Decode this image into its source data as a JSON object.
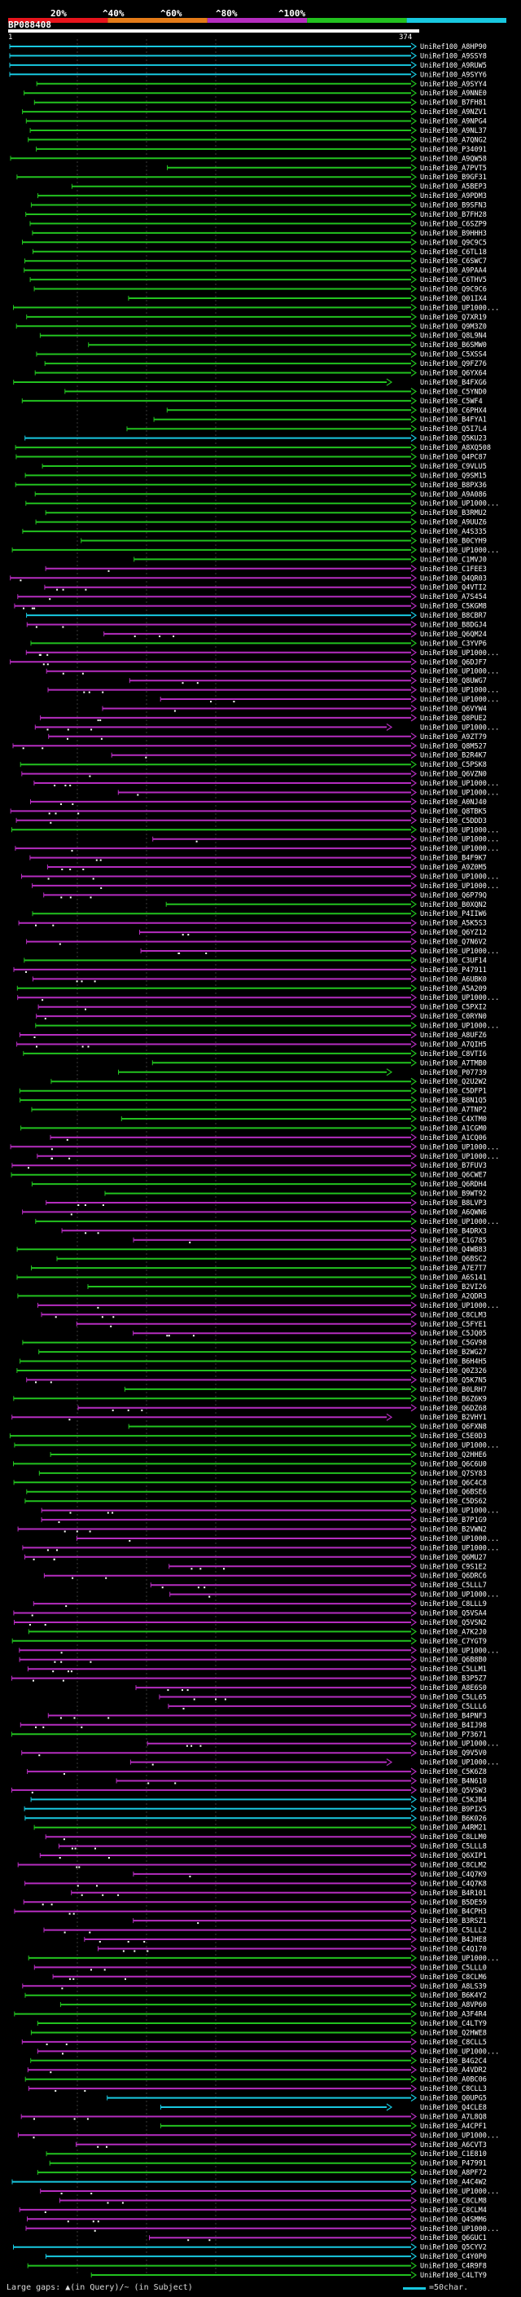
{
  "colors": {
    "red": "#e8141c",
    "orange": "#e57b18",
    "purple": "#b52dbf",
    "green": "#22c21f",
    "cyan": "#18c8e0",
    "ruler": "#ffffff"
  },
  "colorbar": {
    "segments": [
      {
        "label": "20%",
        "color": "red"
      },
      {
        "label": "^40%",
        "color": "orange"
      },
      {
        "label": "^60%",
        "color": "purple"
      },
      {
        "label": "^80%",
        "color": "green"
      },
      {
        "label": "^100%",
        "color": "cyan"
      }
    ]
  },
  "query": {
    "title": "BP088408",
    "start": "1",
    "end": "374"
  },
  "legend": {
    "gaps_text": "Large gaps: ▲(in Query)/~ (in Subject)",
    "scale_text": "=50char."
  },
  "chart_data": {
    "type": "alignment",
    "query_length": 374,
    "hits": [
      {
        "id": "UniRef100_A8HP90",
        "color": "cyan"
      },
      {
        "id": "UniRef100_A9SSY8",
        "color": "cyan"
      },
      {
        "id": "UniRef100_A9RUW5",
        "color": "cyan"
      },
      {
        "id": "UniRef100_A9SYY6",
        "color": "cyan"
      },
      {
        "id": "UniRef100_A9SYY4",
        "color": "green"
      },
      {
        "id": "UniRef100_A9NNE0",
        "color": "green"
      },
      {
        "id": "UniRef100_B7FH81",
        "color": "green"
      },
      {
        "id": "UniRef100_A9NZV1",
        "color": "green"
      },
      {
        "id": "UniRef100_A9NPG4",
        "color": "green"
      },
      {
        "id": "UniRef100_A9NL37",
        "color": "green"
      },
      {
        "id": "UniRef100_A7QNG2",
        "color": "green"
      },
      {
        "id": "UniRef100_P34091",
        "color": "green"
      },
      {
        "id": "UniRef100_A9QW58",
        "color": "green"
      },
      {
        "id": "UniRef100_A7PVT5",
        "color": "green"
      },
      {
        "id": "UniRef100_B9GF31",
        "color": "green"
      },
      {
        "id": "UniRef100_A5BEP3",
        "color": "green"
      },
      {
        "id": "UniRef100_A9PDM3",
        "color": "green"
      },
      {
        "id": "UniRef100_B9SFN3",
        "color": "green"
      },
      {
        "id": "UniRef100_B7FH28",
        "color": "green"
      },
      {
        "id": "UniRef100_C6SZP9",
        "color": "green"
      },
      {
        "id": "UniRef100_B9HHH3",
        "color": "green"
      },
      {
        "id": "UniRef100_Q9C9C5",
        "color": "green"
      },
      {
        "id": "UniRef100_C6TL18",
        "color": "green"
      },
      {
        "id": "UniRef100_C6SWC7",
        "color": "green"
      },
      {
        "id": "UniRef100_A9PAA4",
        "color": "green"
      },
      {
        "id": "UniRef100_C6THV5",
        "color": "green"
      },
      {
        "id": "UniRef100_Q9C9C6",
        "color": "green"
      },
      {
        "id": "UniRef100_Q01IX4",
        "color": "green"
      },
      {
        "id": "UniRef100_UP1000...",
        "color": "green"
      },
      {
        "id": "UniRef100_Q7XR19",
        "color": "green"
      },
      {
        "id": "UniRef100_Q9M3Z0",
        "color": "green"
      },
      {
        "id": "UniRef100_Q8L9N4",
        "color": "green"
      },
      {
        "id": "UniRef100_B6SMW0",
        "color": "green"
      },
      {
        "id": "UniRef100_C5XSS4",
        "color": "green"
      },
      {
        "id": "UniRef100_Q9FZ76",
        "color": "green"
      },
      {
        "id": "UniRef100_Q6YX64",
        "color": "green"
      },
      {
        "id": "UniRef100_B4FXG6",
        "color": "green"
      },
      {
        "id": "UniRef100_C5YND0",
        "color": "green"
      },
      {
        "id": "UniRef100_C5WF4",
        "color": "green"
      },
      {
        "id": "UniRef100_C6PHX4",
        "color": "green"
      },
      {
        "id": "UniRef100_B4FYA1",
        "color": "green"
      },
      {
        "id": "UniRef100_Q5I7L4",
        "color": "green"
      },
      {
        "id": "UniRef100_Q5KU23",
        "color": "cyan"
      },
      {
        "id": "UniRef100_A8XQ508",
        "color": "green"
      },
      {
        "id": "UniRef100_Q4PC87",
        "color": "green"
      },
      {
        "id": "UniRef100_C9VLU5",
        "color": "green"
      },
      {
        "id": "UniRef100_Q9SM15",
        "color": "green"
      },
      {
        "id": "UniRef100_B8PX36",
        "color": "green"
      },
      {
        "id": "UniRef100_A9A086",
        "color": "green"
      },
      {
        "id": "UniRef100_UP1000...",
        "color": "green"
      },
      {
        "id": "UniRef100_B3RMU2",
        "color": "green"
      },
      {
        "id": "UniRef100_A9UUZ6",
        "color": "green"
      },
      {
        "id": "UniRef100_A4S335",
        "color": "green"
      },
      {
        "id": "UniRef100_B0CYH9",
        "color": "green"
      },
      {
        "id": "UniRef100_UP1000...",
        "color": "green"
      },
      {
        "id": "UniRef100_C1MVJ0",
        "color": "green"
      },
      {
        "id": "UniRef100_C1FEE3",
        "color": "purple"
      },
      {
        "id": "UniRef100_Q4QR03",
        "color": "purple"
      },
      {
        "id": "UniRef100_Q4VTI2",
        "color": "purple"
      },
      {
        "id": "UniRef100_A7S454",
        "color": "purple"
      },
      {
        "id": "UniRef100_C5KGM8",
        "color": "purple"
      },
      {
        "id": "UniRef100_B8CBR7",
        "color": "cyan"
      },
      {
        "id": "UniRef100_B8DGJ4",
        "color": "purple"
      },
      {
        "id": "UniRef100_Q6QM24",
        "color": "purple"
      },
      {
        "id": "UniRef100_C3YVP6",
        "color": "green"
      },
      {
        "id": "UniRef100_UP1000...",
        "color": "purple"
      },
      {
        "id": "UniRef100_Q6DJF7",
        "color": "purple"
      },
      {
        "id": "UniRef100_UP1000...",
        "color": "purple"
      },
      {
        "id": "UniRef100_Q8UWG7",
        "color": "purple"
      },
      {
        "id": "UniRef100_UP1000...",
        "color": "purple"
      },
      {
        "id": "UniRef100_UP1000...",
        "color": "purple"
      },
      {
        "id": "UniRef100_Q6VYW4",
        "color": "purple"
      },
      {
        "id": "UniRef100_Q8PUE2",
        "color": "purple"
      },
      {
        "id": "UniRef100_UP1000...",
        "color": "purple"
      },
      {
        "id": "UniRef100_A9ZT79",
        "color": "purple"
      },
      {
        "id": "UniRef100_Q8M527",
        "color": "purple"
      },
      {
        "id": "UniRef100_B2R4K7",
        "color": "purple"
      },
      {
        "id": "UniRef100_C5PSK8",
        "color": "green"
      },
      {
        "id": "UniRef100_Q6VZN0",
        "color": "purple"
      },
      {
        "id": "UniRef100_UP1000...",
        "color": "purple"
      },
      {
        "id": "UniRef100_UP1000...",
        "color": "purple"
      },
      {
        "id": "UniRef100_A0NJ40",
        "color": "purple"
      },
      {
        "id": "UniRef100_Q8TBK5",
        "color": "purple"
      },
      {
        "id": "UniRef100_C5DDD3",
        "color": "purple"
      },
      {
        "id": "UniRef100_UP1000...",
        "color": "green"
      },
      {
        "id": "UniRef100_UP1000...",
        "color": "purple"
      },
      {
        "id": "UniRef100_UP1000...",
        "color": "purple"
      },
      {
        "id": "UniRef100_B4F9K7",
        "color": "purple"
      },
      {
        "id": "UniRef100_A9Z0M5",
        "color": "purple"
      },
      {
        "id": "UniRef100_UP1000...",
        "color": "purple"
      },
      {
        "id": "UniRef100_UP1000...",
        "color": "purple"
      },
      {
        "id": "UniRef100_Q6P79Q",
        "color": "purple"
      },
      {
        "id": "UniRef100_B0XQN2",
        "color": "green"
      },
      {
        "id": "UniRef100_P4IIW6",
        "color": "green"
      },
      {
        "id": "UniRef100_A5K5S3",
        "color": "purple"
      },
      {
        "id": "UniRef100_Q6YZ12",
        "color": "purple"
      },
      {
        "id": "UniRef100_Q7N6V2",
        "color": "purple"
      },
      {
        "id": "UniRef100_UP1000...",
        "color": "purple"
      },
      {
        "id": "UniRef100_C3UF14",
        "color": "green"
      },
      {
        "id": "UniRef100_P47911",
        "color": "purple"
      },
      {
        "id": "UniRef100_A6UBK0",
        "color": "purple"
      },
      {
        "id": "UniRef100_A5A209",
        "color": "green"
      },
      {
        "id": "UniRef100_UP1000...",
        "color": "purple"
      },
      {
        "id": "UniRef100_C5PXI2",
        "color": "purple"
      },
      {
        "id": "UniRef100_C0RYN0",
        "color": "purple"
      },
      {
        "id": "UniRef100_UP1000...",
        "color": "green"
      },
      {
        "id": "UniRef100_A8UFZ6",
        "color": "purple"
      },
      {
        "id": "UniRef100_A7QIH5",
        "color": "purple"
      },
      {
        "id": "UniRef100_C8VTI6",
        "color": "green"
      },
      {
        "id": "UniRef100_A7TMB0",
        "color": "green"
      },
      {
        "id": "UniRef100_P07739",
        "color": "green"
      },
      {
        "id": "UniRef100_Q2U2W2",
        "color": "green"
      },
      {
        "id": "UniRef100_C5DFP1",
        "color": "green"
      },
      {
        "id": "UniRef100_B8N1Q5",
        "color": "green"
      },
      {
        "id": "UniRef100_A7TNP2",
        "color": "green"
      },
      {
        "id": "UniRef100_C4XTM0",
        "color": "green"
      },
      {
        "id": "UniRef100_A1CGM0",
        "color": "green"
      },
      {
        "id": "UniRef100_A1CQ06",
        "color": "purple"
      },
      {
        "id": "UniRef100_UP1000...",
        "color": "purple"
      },
      {
        "id": "UniRef100_UP1000...",
        "color": "purple"
      },
      {
        "id": "UniRef100_B7FUV3",
        "color": "purple"
      },
      {
        "id": "UniRef100_Q6CWE7",
        "color": "green"
      },
      {
        "id": "UniRef100_Q6RDH4",
        "color": "green"
      },
      {
        "id": "UniRef100_B9WT92",
        "color": "green"
      },
      {
        "id": "UniRef100_B8LVP3",
        "color": "purple"
      },
      {
        "id": "UniRef100_A6QWN6",
        "color": "purple"
      },
      {
        "id": "UniRef100_UP1000...",
        "color": "green"
      },
      {
        "id": "UniRef100_B4DRX3",
        "color": "purple"
      },
      {
        "id": "UniRef100_C1G785",
        "color": "purple"
      },
      {
        "id": "UniRef100_Q4WB83",
        "color": "green"
      },
      {
        "id": "UniRef100_Q6BSC2",
        "color": "green"
      },
      {
        "id": "UniRef100_A7E7T7",
        "color": "green"
      },
      {
        "id": "UniRef100_A6S141",
        "color": "green"
      },
      {
        "id": "UniRef100_B2VI26",
        "color": "green"
      },
      {
        "id": "UniRef100_A2QDR3",
        "color": "green"
      },
      {
        "id": "UniRef100_UP1000...",
        "color": "purple"
      },
      {
        "id": "UniRef100_C8CLM3",
        "color": "purple"
      },
      {
        "id": "UniRef100_C5FYE1",
        "color": "purple"
      },
      {
        "id": "UniRef100_C5JQ05",
        "color": "purple"
      },
      {
        "id": "UniRef100_C5GV98",
        "color": "green"
      },
      {
        "id": "UniRef100_B2WG27",
        "color": "green"
      },
      {
        "id": "UniRef100_B6H4H5",
        "color": "green"
      },
      {
        "id": "UniRef100_Q0Z326",
        "color": "green"
      },
      {
        "id": "UniRef100_Q5K7N5",
        "color": "purple"
      },
      {
        "id": "UniRef100_B0LRH7",
        "color": "green"
      },
      {
        "id": "UniRef100_B6Z6K9",
        "color": "green"
      },
      {
        "id": "UniRef100_Q6DZ68",
        "color": "purple"
      },
      {
        "id": "UniRef100_B2VHY1",
        "color": "purple"
      },
      {
        "id": "UniRef100_Q6FXN8",
        "color": "green"
      },
      {
        "id": "UniRef100_C5E0D3",
        "color": "green"
      },
      {
        "id": "UniRef100_UP1000...",
        "color": "green"
      },
      {
        "id": "UniRef100_Q2HHE6",
        "color": "green"
      },
      {
        "id": "UniRef100_Q6C6U0",
        "color": "green"
      },
      {
        "id": "UniRef100_Q7SY83",
        "color": "green"
      },
      {
        "id": "UniRef100_Q6C4C8",
        "color": "green"
      },
      {
        "id": "UniRef100_Q6BSE6",
        "color": "green"
      },
      {
        "id": "UniRef100_C5DS62",
        "color": "green"
      },
      {
        "id": "UniRef100_UP1000...",
        "color": "purple"
      },
      {
        "id": "UniRef100_B7P1G9",
        "color": "purple"
      },
      {
        "id": "UniRef100_B2VWN2",
        "color": "purple"
      },
      {
        "id": "UniRef100_UP1000...",
        "color": "purple"
      },
      {
        "id": "UniRef100_UP1000...",
        "color": "purple"
      },
      {
        "id": "UniRef100_Q6MU27",
        "color": "purple"
      },
      {
        "id": "UniRef100_C9S1E2",
        "color": "purple"
      },
      {
        "id": "UniRef100_Q6DRC6",
        "color": "purple"
      },
      {
        "id": "UniRef100_C5LLL7",
        "color": "purple"
      },
      {
        "id": "UniRef100_UP1000...",
        "color": "purple"
      },
      {
        "id": "UniRef100_C8LLL9",
        "color": "purple"
      },
      {
        "id": "UniRef100_Q5VSA4",
        "color": "purple"
      },
      {
        "id": "UniRef100_Q5VSN2",
        "color": "purple"
      },
      {
        "id": "UniRef100_A7K2J0",
        "color": "green"
      },
      {
        "id": "UniRef100_C7YGT9",
        "color": "green"
      },
      {
        "id": "UniRef100_UP1000...",
        "color": "purple"
      },
      {
        "id": "UniRef100_Q6B8B0",
        "color": "purple"
      },
      {
        "id": "UniRef100_C5LLM1",
        "color": "purple"
      },
      {
        "id": "UniRef100_B3P5Z7",
        "color": "purple"
      },
      {
        "id": "UniRef100_A8E6S0",
        "color": "purple"
      },
      {
        "id": "UniRef100_C5LL65",
        "color": "purple"
      },
      {
        "id": "UniRef100_C5LLL6",
        "color": "purple"
      },
      {
        "id": "UniRef100_B4PNF3",
        "color": "purple"
      },
      {
        "id": "UniRef100_B4IJ98",
        "color": "purple"
      },
      {
        "id": "UniRef100_P73671",
        "color": "green"
      },
      {
        "id": "UniRef100_UP1000...",
        "color": "purple"
      },
      {
        "id": "UniRef100_Q9V5V0",
        "color": "purple"
      },
      {
        "id": "UniRef100_UP1000...",
        "color": "purple"
      },
      {
        "id": "UniRef100_C5K6Z8",
        "color": "purple"
      },
      {
        "id": "UniRef100_B4N610",
        "color": "purple"
      },
      {
        "id": "UniRef100_Q5VSW3",
        "color": "purple"
      },
      {
        "id": "UniRef100_C5KJB4",
        "color": "cyan"
      },
      {
        "id": "UniRef100_B9PIX5",
        "color": "cyan"
      },
      {
        "id": "UniRef100_B6K026",
        "color": "cyan"
      },
      {
        "id": "UniRef100_A4RM21",
        "color": "green"
      },
      {
        "id": "UniRef100_C8LLM0",
        "color": "purple"
      },
      {
        "id": "UniRef100_C5LLL8",
        "color": "purple"
      },
      {
        "id": "UniRef100_Q6XIP1",
        "color": "purple"
      },
      {
        "id": "UniRef100_C8CLM2",
        "color": "purple"
      },
      {
        "id": "UniRef100_C4Q7K9",
        "color": "purple"
      },
      {
        "id": "UniRef100_C4Q7K8",
        "color": "purple"
      },
      {
        "id": "UniRef100_B4R101",
        "color": "purple"
      },
      {
        "id": "UniRef100_B5DE59",
        "color": "purple"
      },
      {
        "id": "UniRef100_B4CPH3",
        "color": "purple"
      },
      {
        "id": "UniRef100_B3RSZ1",
        "color": "purple"
      },
      {
        "id": "UniRef100_C5LLL2",
        "color": "purple"
      },
      {
        "id": "UniRef100_B4JHE8",
        "color": "purple"
      },
      {
        "id": "UniRef100_C4Q170",
        "color": "purple"
      },
      {
        "id": "UniRef100_UP1000...",
        "color": "green"
      },
      {
        "id": "UniRef100_C5LLL0",
        "color": "purple"
      },
      {
        "id": "UniRef100_C8CLM6",
        "color": "purple"
      },
      {
        "id": "UniRef100_A8LS39",
        "color": "purple"
      },
      {
        "id": "UniRef100_B6K4Y2",
        "color": "green"
      },
      {
        "id": "UniRef100_A8VP60",
        "color": "green"
      },
      {
        "id": "UniRef100_A3F4R4",
        "color": "green"
      },
      {
        "id": "UniRef100_C4LTY9",
        "color": "green"
      },
      {
        "id": "UniRef100_Q2HWE8",
        "color": "green"
      },
      {
        "id": "UniRef100_C8CLL5",
        "color": "purple"
      },
      {
        "id": "UniRef100_UP1000...",
        "color": "purple"
      },
      {
        "id": "UniRef100_B4G2C4",
        "color": "green"
      },
      {
        "id": "UniRef100_A4VDR2",
        "color": "purple"
      },
      {
        "id": "UniRef100_A0BC06",
        "color": "green"
      },
      {
        "id": "UniRef100_C8CLL3",
        "color": "purple"
      },
      {
        "id": "UniRef100_Q0UPG5",
        "color": "cyan"
      },
      {
        "id": "UniRef100_Q4CLE8",
        "color": "cyan"
      },
      {
        "id": "UniRef100_A7L8Q8",
        "color": "purple"
      },
      {
        "id": "UniRef100_A4CPF1",
        "color": "green"
      },
      {
        "id": "UniRef100_UP1000...",
        "color": "purple"
      },
      {
        "id": "UniRef100_A6CVT3",
        "color": "purple"
      },
      {
        "id": "UniRef100_C1E810",
        "color": "green"
      },
      {
        "id": "UniRef100_P47991",
        "color": "green"
      },
      {
        "id": "UniRef100_A8PF72",
        "color": "green"
      },
      {
        "id": "UniRef100_A4C4W2",
        "color": "cyan"
      },
      {
        "id": "UniRef100_UP1000...",
        "color": "purple"
      },
      {
        "id": "UniRef100_C8CLM8",
        "color": "purple"
      },
      {
        "id": "UniRef100_C8CLM4",
        "color": "purple"
      },
      {
        "id": "UniRef100_Q4SMM6",
        "color": "purple"
      },
      {
        "id": "UniRef100_UP1000...",
        "color": "purple"
      },
      {
        "id": "UniRef100_Q6GUC1",
        "color": "purple"
      },
      {
        "id": "UniRef100_Q5CYV2",
        "color": "cyan"
      },
      {
        "id": "UniRef100_C4Y0P0",
        "color": "cyan"
      },
      {
        "id": "UniRef100_C4R9F8",
        "color": "green"
      },
      {
        "id": "UniRef100_C4LTY9",
        "color": "green"
      }
    ]
  }
}
